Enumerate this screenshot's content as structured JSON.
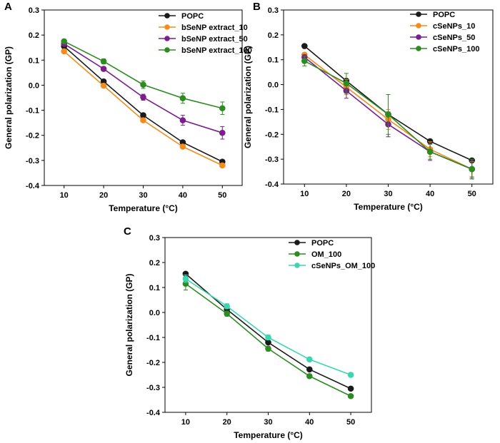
{
  "chart_data": [
    {
      "panel": "A",
      "type": "line",
      "xlabel": "Temperature (°C)",
      "ylabel": "General polarization (GP)",
      "x": [
        10,
        20,
        30,
        40,
        50
      ],
      "xticks": [
        10,
        20,
        30,
        40,
        50
      ],
      "ylim": [
        -0.4,
        0.3
      ],
      "yticks": [
        -0.4,
        -0.3,
        -0.2,
        -0.1,
        0.0,
        0.1,
        0.2,
        0.3
      ],
      "ytick_labels": [
        "-0.4",
        "-0.3",
        "-0.2",
        "-0.1",
        "0.0",
        "0.1",
        "0.2",
        "0.3"
      ],
      "legend_position": "top-right",
      "series": [
        {
          "name": "POPC",
          "color": "#1a1a1a",
          "values": [
            0.155,
            0.015,
            -0.12,
            -0.228,
            -0.305
          ],
          "errors": [
            0.006,
            0.006,
            0.006,
            0.006,
            0.006
          ]
        },
        {
          "name": "bSeNP extract_10",
          "color": "#f28c1c",
          "values": [
            0.135,
            -0.002,
            -0.14,
            -0.245,
            -0.32
          ],
          "errors": [
            0.007,
            0.007,
            0.007,
            0.008,
            0.007
          ]
        },
        {
          "name": "bSeNP extract_50",
          "color": "#7b1f8c",
          "values": [
            0.165,
            0.065,
            -0.048,
            -0.14,
            -0.19
          ],
          "errors": [
            0.008,
            0.008,
            0.012,
            0.02,
            0.025
          ]
        },
        {
          "name": "bSeNP extract_100",
          "color": "#2e8b22",
          "values": [
            0.175,
            0.095,
            0.002,
            -0.052,
            -0.092
          ],
          "errors": [
            0.008,
            0.01,
            0.015,
            0.02,
            0.025
          ]
        }
      ]
    },
    {
      "panel": "B",
      "type": "line",
      "xlabel": "Temperature (°C)",
      "ylabel": "General polarization (GP)",
      "x": [
        10,
        20,
        30,
        40,
        50
      ],
      "xticks": [
        10,
        20,
        30,
        40,
        50
      ],
      "ylim": [
        -0.4,
        0.3
      ],
      "yticks": [
        -0.4,
        -0.3,
        -0.2,
        -0.1,
        0.0,
        0.1,
        0.2,
        0.3
      ],
      "ytick_labels": [
        "-0.4",
        "-0.3",
        "-0.2",
        "-0.1",
        "0.0",
        "0.1",
        "0.2",
        "0.3"
      ],
      "legend_position": "top-right",
      "series": [
        {
          "name": "POPC",
          "color": "#1a1a1a",
          "values": [
            0.155,
            0.015,
            -0.12,
            -0.228,
            -0.305
          ],
          "errors": [
            0.006,
            0.006,
            0.006,
            0.006,
            0.006
          ]
        },
        {
          "name": "cSeNPs_10",
          "color": "#f28c1c",
          "values": [
            0.12,
            -0.01,
            -0.14,
            -0.26,
            -0.34
          ],
          "errors": [
            0.008,
            0.03,
            0.04,
            0.03,
            0.03
          ]
        },
        {
          "name": "cSeNPs_50",
          "color": "#7b1f8c",
          "values": [
            0.11,
            -0.025,
            -0.16,
            -0.27,
            -0.34
          ],
          "errors": [
            0.01,
            0.03,
            0.05,
            0.035,
            0.035
          ]
        },
        {
          "name": "cSeNPs_100",
          "color": "#2e8b22",
          "values": [
            0.095,
            0.005,
            -0.12,
            -0.27,
            -0.34
          ],
          "errors": [
            0.02,
            0.04,
            0.08,
            0.03,
            0.04
          ]
        }
      ]
    },
    {
      "panel": "C",
      "type": "line",
      "xlabel": "Temperature (°C)",
      "ylabel": "General polarization (GP)",
      "x": [
        10,
        20,
        30,
        40,
        50
      ],
      "xticks": [
        10,
        20,
        30,
        40,
        50
      ],
      "ylim": [
        -0.4,
        0.3
      ],
      "yticks": [
        -0.4,
        -0.3,
        -0.2,
        -0.1,
        0.0,
        0.1,
        0.2,
        0.3
      ],
      "ytick_labels": [
        "-0.4",
        "-0.3",
        "-0.2",
        "-0.1",
        "0.0",
        "0.1",
        "0.2",
        "0.3"
      ],
      "legend_position": "top-right",
      "series": [
        {
          "name": "POPC",
          "color": "#1a1a1a",
          "values": [
            0.155,
            0.012,
            -0.12,
            -0.228,
            -0.305
          ],
          "errors": [
            0.006,
            0.006,
            0.006,
            0.006,
            0.006
          ]
        },
        {
          "name": "OM_100",
          "color": "#2e8b22",
          "values": [
            0.115,
            -0.005,
            -0.145,
            -0.255,
            -0.335
          ],
          "errors": [
            0.025,
            0.01,
            0.01,
            0.008,
            0.006
          ]
        },
        {
          "name": "cSeNPs_OM_100",
          "color": "#3ad6b0",
          "values": [
            0.135,
            0.025,
            -0.1,
            -0.188,
            -0.25
          ],
          "errors": [
            0.015,
            0.01,
            0.01,
            0.008,
            0.008
          ]
        }
      ]
    }
  ]
}
